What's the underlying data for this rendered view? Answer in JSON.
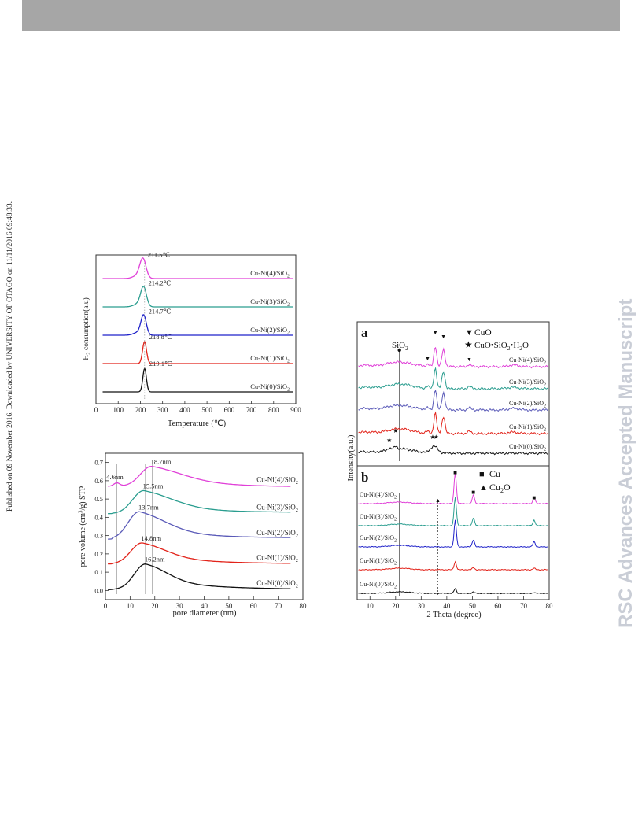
{
  "side_notice": "Published on 09 November 2016. Downloaded by UNIVERSITY OF OTAGO on 11/11/2016 09:48:33.",
  "watermark": "RSC Advances Accepted Manuscript",
  "colors": {
    "black": "#111111",
    "red": "#e2231a",
    "blue": "#1f22c9",
    "teal": "#2a9d8f",
    "magenta": "#e040d8",
    "purple": "#5a5ab8",
    "header_bar": "#a6a6a6",
    "watermark": "#c9cdd6"
  },
  "chart_data": [
    {
      "type": "line",
      "ylabel_main": "H",
      "ylabel_sub": "2",
      "ylabel_rest": " consumption(a.u)",
      "xlabel": "Temperature (℃)",
      "xlim": [
        0,
        900
      ],
      "xticks": [
        "0",
        "100",
        "200",
        "300",
        "400",
        "500",
        "600",
        "700",
        "800",
        "900"
      ],
      "series": [
        {
          "name_main": "Cu-Ni(0)/SiO",
          "name_sub": "2",
          "peak_label": "219.1℃",
          "peak_x": 219.1,
          "peak_height": 0.88,
          "width": 8,
          "color": "#111111"
        },
        {
          "name_main": "Cu-Ni(1)/SiO",
          "name_sub": "2",
          "peak_label": "218.8℃",
          "peak_x": 218.8,
          "peak_height": 0.82,
          "width": 9,
          "color": "#e2231a"
        },
        {
          "name_main": "Cu-Ni(2)/SiO",
          "name_sub": "2",
          "peak_label": "214.7℃",
          "peak_x": 214.7,
          "peak_height": 0.72,
          "width": 12,
          "color": "#1f22c9"
        },
        {
          "name_main": "Cu-Ni(3)/SiO",
          "name_sub": "2",
          "peak_label": "214.2℃",
          "peak_x": 214.2,
          "peak_height": 0.72,
          "width": 13,
          "color": "#2a9d8f"
        },
        {
          "name_main": "Cu-Ni(4)/SiO",
          "name_sub": "2",
          "peak_label": "211.5℃",
          "peak_x": 211.5,
          "peak_height": 0.72,
          "width": 14,
          "color": "#e040d8"
        }
      ]
    },
    {
      "type": "line",
      "ylabel_main": "pore volume (cm",
      "ylabel_sup": "3",
      "ylabel_rest": "/g) STP",
      "xlabel": "pore diameter (nm)",
      "xlim": [
        0,
        80
      ],
      "ylim": [
        -0.05,
        0.75
      ],
      "xticks": [
        "0",
        "10",
        "20",
        "30",
        "40",
        "50",
        "60",
        "70",
        "80"
      ],
      "yticks": [
        "0.0",
        "0.1",
        "0.2",
        "0.3",
        "0.4",
        "0.5",
        "0.6",
        "0.7"
      ],
      "vlines": [
        4.6,
        16.2,
        19.0
      ],
      "series": [
        {
          "name_main": "Cu-Ni(0)/SiO",
          "name_sub": "2",
          "peak_label": "16.2nm",
          "base": 0.005,
          "peak_x": 16.2,
          "peak_y": 0.145,
          "tail": 0.005,
          "color": "#111111"
        },
        {
          "name_main": "Cu-Ni(1)/SiO",
          "name_sub": "2",
          "peak_label": "14.8nm",
          "base": 0.145,
          "peak_x": 14.8,
          "peak_y": 0.26,
          "tail": 0.145,
          "color": "#e2231a"
        },
        {
          "name_main": "Cu-Ni(2)/SiO",
          "name_sub": "2",
          "peak_label": "13.7nm",
          "base": 0.28,
          "peak_x": 13.7,
          "peak_y": 0.43,
          "tail": 0.285,
          "color": "#5a5ab8"
        },
        {
          "name_main": "Cu-Ni(3)/SiO",
          "name_sub": "2",
          "peak_label": "15.5nm",
          "base": 0.42,
          "peak_x": 15.5,
          "peak_y": 0.545,
          "tail": 0.425,
          "color": "#2a9d8f"
        },
        {
          "name_main": "Cu-Ni(4)/SiO",
          "name_sub": "2",
          "peak_label": "18.7nm",
          "extra_label": "4.6nm",
          "base": 0.57,
          "peak_x": 18.7,
          "peak_y": 0.68,
          "tail": 0.565,
          "color": "#e040d8"
        }
      ]
    },
    {
      "type": "line",
      "panel_a_label": "a",
      "panel_b_label": "b",
      "ylabel": "Intensity(a.u.)",
      "xlabel": "2 Theta (degree)",
      "xlim": [
        5,
        80
      ],
      "xticks": [
        "10",
        "20",
        "30",
        "40",
        "50",
        "60",
        "70",
        "80"
      ],
      "legend_a": [
        {
          "symbol": "▼",
          "text": "CuO"
        },
        {
          "symbol": "★",
          "text_main": "CuO•SiO",
          "text_sub": "2",
          "text_rest": "•H",
          "text_sub2": "2",
          "text_rest2": "O"
        }
      ],
      "legend_b": [
        {
          "symbol": "■",
          "text": "Cu"
        },
        {
          "symbol": "▲",
          "text_main": "Cu",
          "text_sub": "2",
          "text_rest": "O"
        }
      ],
      "sio2_main": "SiO",
      "sio2_sub": "2",
      "panel_a_series": [
        {
          "name_main": "Cu-Ni(4)/SiO",
          "name_sub": "2",
          "color": "#e040d8"
        },
        {
          "name_main": "Cu-Ni(3)/SiO",
          "name_sub": "2",
          "color": "#2a9d8f"
        },
        {
          "name_main": "Cu-Ni(2)/SiO",
          "name_sub": "2",
          "color": "#5a5ab8"
        },
        {
          "name_main": "Cu-Ni(1)/SiO",
          "name_sub": "2",
          "color": "#e2231a"
        },
        {
          "name_main": "Cu-Ni(0)/SiO",
          "name_sub": "2",
          "color": "#111111"
        }
      ],
      "panel_b_series": [
        {
          "name_main": "Cu-Ni(4)/SiO",
          "name_sub": "2",
          "color": "#e040d8"
        },
        {
          "name_main": "Cu-Ni(3)/SiO",
          "name_sub": "2",
          "color": "#2a9d8f"
        },
        {
          "name_main": "Cu-Ni(2)/SiO",
          "name_sub": "2",
          "color": "#1f22c9"
        },
        {
          "name_main": "Cu-Ni(1)/SiO",
          "name_sub": "2",
          "color": "#e2231a"
        },
        {
          "name_main": "Cu-Ni(0)/SiO",
          "name_sub": "2",
          "color": "#111111"
        }
      ],
      "cuo_peaks_2theta": [
        32.5,
        35.5,
        38.7,
        48.8
      ],
      "silicate_peaks_2theta": [
        17.5,
        20.0,
        34.5,
        35.8
      ],
      "cu_peaks_2theta": [
        43.3,
        50.4,
        74.1
      ],
      "cu2o_peak_2theta": 36.5
    }
  ]
}
